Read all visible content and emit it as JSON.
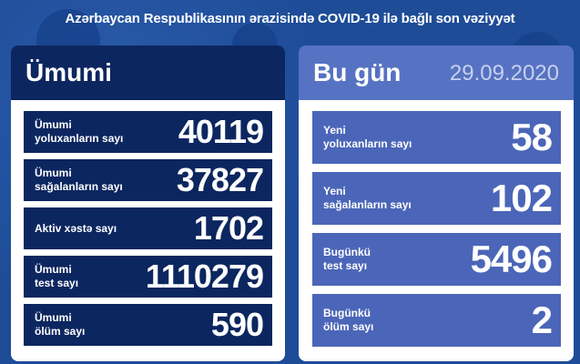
{
  "title": "Azərbaycan Respublikasının ərazisində COVID-19 ilə bağlı son vəziyyət",
  "total": {
    "header": "Ümumi",
    "rows": [
      {
        "label": "Ümumi\nyoluxanların sayı",
        "value": "40119"
      },
      {
        "label": "Ümumi\nsağalanların sayı",
        "value": "37827"
      },
      {
        "label": "Aktiv xəstə sayı",
        "value": "1702"
      },
      {
        "label": "Ümumi\ntest sayı",
        "value": "1110279"
      },
      {
        "label": "Ümumi\nölüm sayı",
        "value": "590"
      }
    ]
  },
  "today": {
    "header": "Bu gün",
    "date": "29.09.2020",
    "rows": [
      {
        "label": "Yeni\nyoluxanların sayı",
        "value": "58"
      },
      {
        "label": "Yeni\nsağalanların sayı",
        "value": "102"
      },
      {
        "label": "Bugünkü\ntest sayı",
        "value": "5496"
      },
      {
        "label": "Bugünkü\nölüm sayı",
        "value": "2"
      }
    ]
  },
  "colors": {
    "background": "#1e4c97",
    "total_header": "#0c2660",
    "today_header": "#5672c2",
    "today_row": "#4b66b8"
  }
}
